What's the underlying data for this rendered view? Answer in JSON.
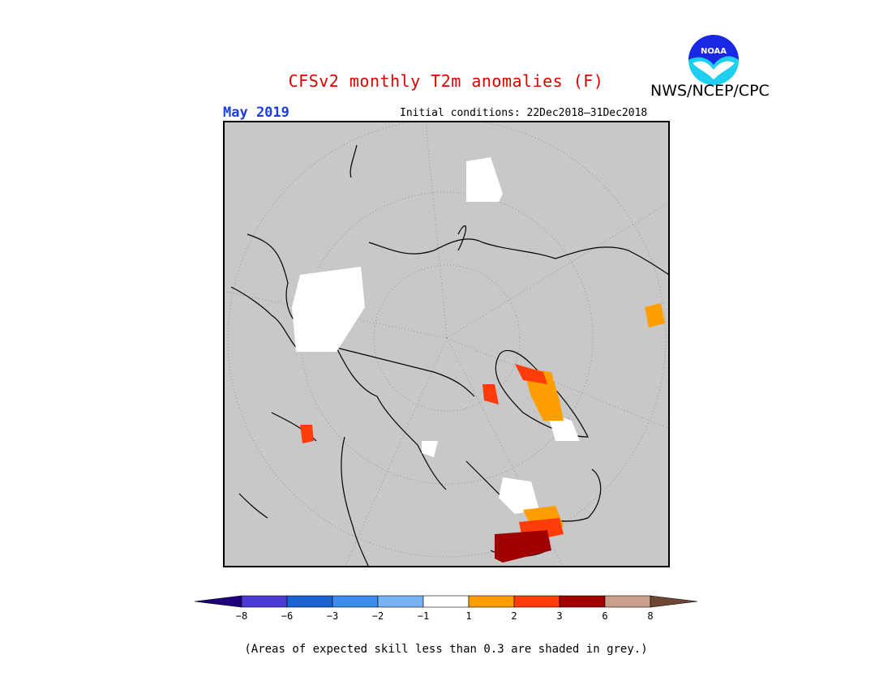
{
  "header": {
    "title": "CFSv2 monthly T2m anomalies (F)",
    "agency": "NWS/NCEP/CPC",
    "logo_text": "NOAA",
    "month": "May 2019",
    "initial_conditions": "Initial conditions: 22Dec2018–31Dec2018"
  },
  "colors": {
    "title": "#dd0000",
    "month": "#1a3fdd",
    "grey_mask": "#c8c8c8",
    "frame": "#000000",
    "white": "#ffffff",
    "orange": "#ff9e00",
    "red_orange": "#ff3c0a",
    "dark_red": "#a00000",
    "logo_blue": "#1a28e6",
    "logo_cyan": "#1ecff0"
  },
  "colorbar": {
    "bins": [
      {
        "color": "#1e007a"
      },
      {
        "color": "#4a3cd2"
      },
      {
        "color": "#1a64d2"
      },
      {
        "color": "#3c8cf0"
      },
      {
        "color": "#78b4f5"
      },
      {
        "color": "#ffffff"
      },
      {
        "color": "#ff9e00"
      },
      {
        "color": "#ff3c0a"
      },
      {
        "color": "#a00000"
      },
      {
        "color": "#c8a08c"
      },
      {
        "color": "#6e4632"
      }
    ],
    "tick_labels": [
      "−8",
      "−6",
      "−3",
      "−2",
      "−1",
      "1",
      "2",
      "3",
      "6",
      "8"
    ]
  },
  "footer": {
    "note": "(Areas of expected skill less than 0.3 are shaded in grey.)"
  }
}
